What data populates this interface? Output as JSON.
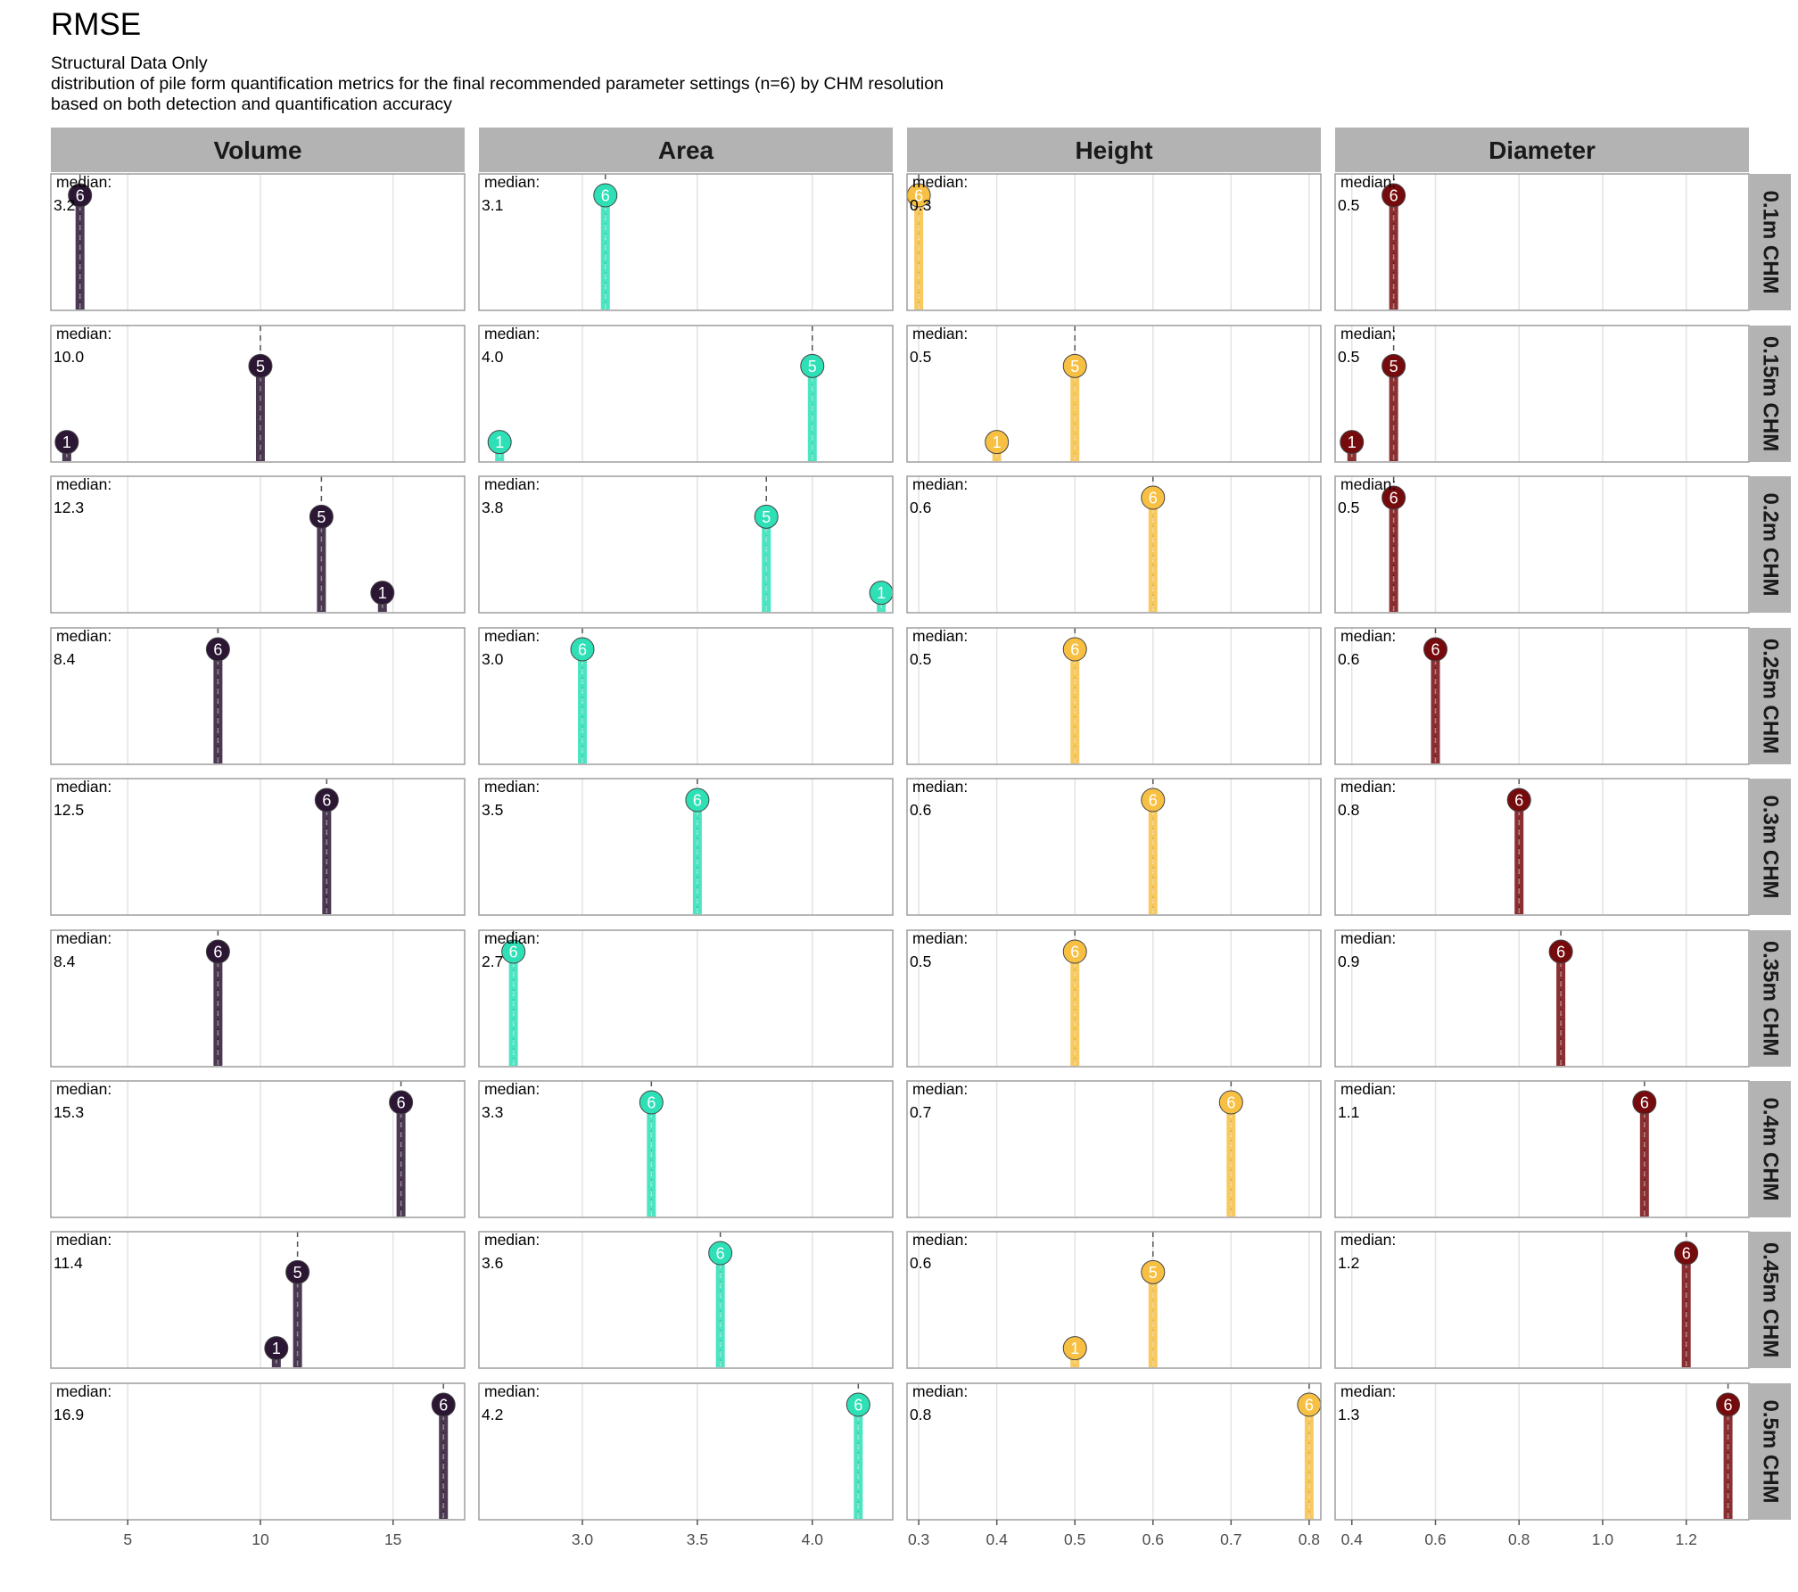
{
  "title": "RMSE",
  "subtitle_lines": [
    "Structural Data Only",
    "distribution of pile form quantification metrics for the final recommended parameter settings (n=6) by CHM resolution",
    "based on both detection and quantification accuracy"
  ],
  "chart_data": {
    "type": "lollipop",
    "facet_columns": [
      "Volume",
      "Area",
      "Height",
      "Diameter"
    ],
    "facet_rows": [
      "0.1m CHM",
      "0.15m CHM",
      "0.2m CHM",
      "0.25m CHM",
      "0.3m CHM",
      "0.35m CHM",
      "0.4m CHM",
      "0.45m CHM",
      "0.5m CHM"
    ],
    "median_label": "median:",
    "colors": {
      "Volume": "#2b1633",
      "Area": "#2de0b6",
      "Height": "#f7c043",
      "Diameter": "#760b0e"
    },
    "axes": {
      "Volume": {
        "xlim": [
          2.1,
          17.7
        ],
        "ticks": [
          5,
          10,
          15
        ],
        "tick_labels": [
          "5",
          "10",
          "15"
        ]
      },
      "Area": {
        "xlim": [
          2.55,
          4.35
        ],
        "ticks": [
          3.0,
          3.5,
          4.0
        ],
        "tick_labels": [
          "3.0",
          "3.5",
          "4.0"
        ]
      },
      "Height": {
        "xlim": [
          0.285,
          0.815
        ],
        "ticks": [
          0.3,
          0.4,
          0.5,
          0.6,
          0.7,
          0.8
        ],
        "tick_labels": [
          "0.3",
          "0.4",
          "0.5",
          "0.6",
          "0.7",
          "0.8"
        ]
      },
      "Diameter": {
        "xlim": [
          0.36,
          1.35
        ],
        "ticks": [
          0.4,
          0.6,
          0.8,
          1.0,
          1.2
        ],
        "tick_labels": [
          "0.4",
          "0.6",
          "0.8",
          "1.0",
          "1.2"
        ]
      }
    },
    "panels": [
      {
        "row": "0.1m CHM",
        "column": "Volume",
        "median": "3.2",
        "points": [
          {
            "x": 3.2,
            "count": 6
          }
        ]
      },
      {
        "row": "0.1m CHM",
        "column": "Area",
        "median": "3.1",
        "points": [
          {
            "x": 3.1,
            "count": 6
          }
        ]
      },
      {
        "row": "0.1m CHM",
        "column": "Height",
        "median": "0.3",
        "points": [
          {
            "x": 0.3,
            "count": 6
          }
        ]
      },
      {
        "row": "0.1m CHM",
        "column": "Diameter",
        "median": "0.5",
        "points": [
          {
            "x": 0.5,
            "count": 6
          }
        ]
      },
      {
        "row": "0.15m CHM",
        "column": "Volume",
        "median": "10.0",
        "points": [
          {
            "x": 2.7,
            "count": 1
          },
          {
            "x": 10.0,
            "count": 5
          }
        ]
      },
      {
        "row": "0.15m CHM",
        "column": "Area",
        "median": "4.0",
        "points": [
          {
            "x": 2.64,
            "count": 1
          },
          {
            "x": 4.0,
            "count": 5
          }
        ]
      },
      {
        "row": "0.15m CHM",
        "column": "Height",
        "median": "0.5",
        "points": [
          {
            "x": 0.4,
            "count": 1
          },
          {
            "x": 0.5,
            "count": 5
          }
        ]
      },
      {
        "row": "0.15m CHM",
        "column": "Diameter",
        "median": "0.5",
        "points": [
          {
            "x": 0.4,
            "count": 1
          },
          {
            "x": 0.5,
            "count": 5
          }
        ]
      },
      {
        "row": "0.2m CHM",
        "column": "Volume",
        "median": "12.3",
        "points": [
          {
            "x": 12.3,
            "count": 5
          },
          {
            "x": 14.6,
            "count": 1
          }
        ]
      },
      {
        "row": "0.2m CHM",
        "column": "Area",
        "median": "3.8",
        "points": [
          {
            "x": 3.8,
            "count": 5
          },
          {
            "x": 4.3,
            "count": 1
          }
        ]
      },
      {
        "row": "0.2m CHM",
        "column": "Height",
        "median": "0.6",
        "points": [
          {
            "x": 0.6,
            "count": 6
          }
        ]
      },
      {
        "row": "0.2m CHM",
        "column": "Diameter",
        "median": "0.5",
        "points": [
          {
            "x": 0.5,
            "count": 6
          }
        ]
      },
      {
        "row": "0.25m CHM",
        "column": "Volume",
        "median": "8.4",
        "points": [
          {
            "x": 8.4,
            "count": 6
          }
        ]
      },
      {
        "row": "0.25m CHM",
        "column": "Area",
        "median": "3.0",
        "points": [
          {
            "x": 3.0,
            "count": 6
          }
        ]
      },
      {
        "row": "0.25m CHM",
        "column": "Height",
        "median": "0.5",
        "points": [
          {
            "x": 0.5,
            "count": 6
          }
        ]
      },
      {
        "row": "0.25m CHM",
        "column": "Diameter",
        "median": "0.6",
        "points": [
          {
            "x": 0.6,
            "count": 6
          }
        ]
      },
      {
        "row": "0.3m CHM",
        "column": "Volume",
        "median": "12.5",
        "points": [
          {
            "x": 12.5,
            "count": 6
          }
        ]
      },
      {
        "row": "0.3m CHM",
        "column": "Area",
        "median": "3.5",
        "points": [
          {
            "x": 3.5,
            "count": 6
          }
        ]
      },
      {
        "row": "0.3m CHM",
        "column": "Height",
        "median": "0.6",
        "points": [
          {
            "x": 0.6,
            "count": 6
          }
        ]
      },
      {
        "row": "0.3m CHM",
        "column": "Diameter",
        "median": "0.8",
        "points": [
          {
            "x": 0.8,
            "count": 6
          }
        ]
      },
      {
        "row": "0.35m CHM",
        "column": "Volume",
        "median": "8.4",
        "points": [
          {
            "x": 8.4,
            "count": 6
          }
        ]
      },
      {
        "row": "0.35m CHM",
        "column": "Area",
        "median": "2.7",
        "points": [
          {
            "x": 2.7,
            "count": 6
          }
        ]
      },
      {
        "row": "0.35m CHM",
        "column": "Height",
        "median": "0.5",
        "points": [
          {
            "x": 0.5,
            "count": 6
          }
        ]
      },
      {
        "row": "0.35m CHM",
        "column": "Diameter",
        "median": "0.9",
        "points": [
          {
            "x": 0.9,
            "count": 6
          }
        ]
      },
      {
        "row": "0.4m CHM",
        "column": "Volume",
        "median": "15.3",
        "points": [
          {
            "x": 15.3,
            "count": 6
          }
        ]
      },
      {
        "row": "0.4m CHM",
        "column": "Area",
        "median": "3.3",
        "points": [
          {
            "x": 3.3,
            "count": 6
          }
        ]
      },
      {
        "row": "0.4m CHM",
        "column": "Height",
        "median": "0.7",
        "points": [
          {
            "x": 0.7,
            "count": 6
          }
        ]
      },
      {
        "row": "0.4m CHM",
        "column": "Diameter",
        "median": "1.1",
        "points": [
          {
            "x": 1.1,
            "count": 6
          }
        ]
      },
      {
        "row": "0.45m CHM",
        "column": "Volume",
        "median": "11.4",
        "points": [
          {
            "x": 10.6,
            "count": 1
          },
          {
            "x": 11.4,
            "count": 5
          }
        ]
      },
      {
        "row": "0.45m CHM",
        "column": "Area",
        "median": "3.6",
        "points": [
          {
            "x": 3.6,
            "count": 6
          }
        ]
      },
      {
        "row": "0.45m CHM",
        "column": "Height",
        "median": "0.6",
        "points": [
          {
            "x": 0.5,
            "count": 1
          },
          {
            "x": 0.6,
            "count": 5
          }
        ]
      },
      {
        "row": "0.45m CHM",
        "column": "Diameter",
        "median": "1.2",
        "points": [
          {
            "x": 1.2,
            "count": 6
          }
        ]
      },
      {
        "row": "0.5m CHM",
        "column": "Volume",
        "median": "16.9",
        "points": [
          {
            "x": 16.9,
            "count": 6
          }
        ]
      },
      {
        "row": "0.5m CHM",
        "column": "Area",
        "median": "4.2",
        "points": [
          {
            "x": 4.2,
            "count": 6
          }
        ]
      },
      {
        "row": "0.5m CHM",
        "column": "Height",
        "median": "0.8",
        "points": [
          {
            "x": 0.8,
            "count": 6
          }
        ]
      },
      {
        "row": "0.5m CHM",
        "column": "Diameter",
        "median": "1.3",
        "points": [
          {
            "x": 1.3,
            "count": 6
          }
        ]
      }
    ]
  }
}
